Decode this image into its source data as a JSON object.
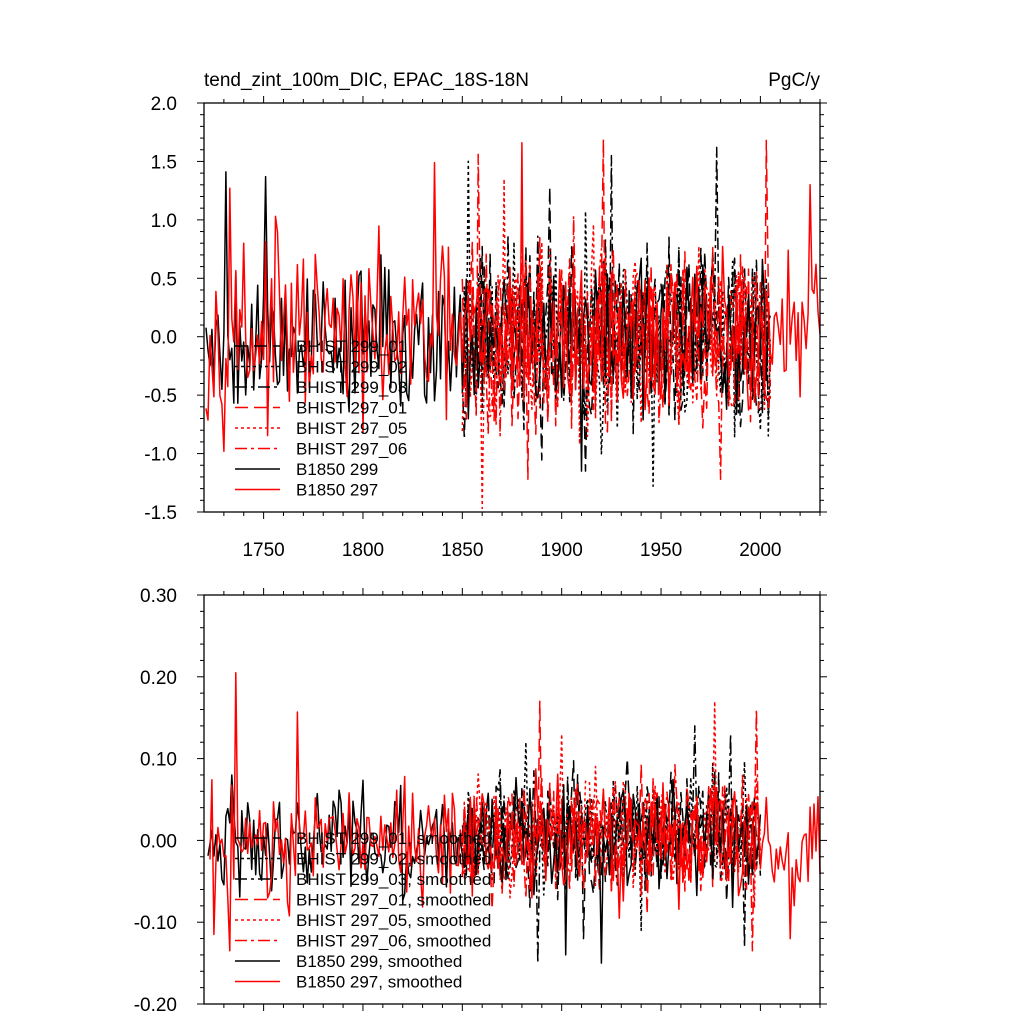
{
  "figure": {
    "title_left": "tend_zint_100m_DIC, EPAC_18S-18N",
    "title_right": "PgC/y"
  },
  "colors": {
    "black": "#000000",
    "red": "#ff0000"
  },
  "chart_data": [
    {
      "type": "line",
      "title": "tend_zint_100m_DIC, EPAC_18S-18N",
      "units": "PgC/y",
      "xlim": [
        1720,
        2030
      ],
      "ylim": [
        -1.5,
        2.0
      ],
      "x_major_ticks": [
        1750,
        1800,
        1850,
        1900,
        1950,
        2000
      ],
      "x_tick_labels": [
        "1750",
        "1800",
        "1850",
        "1900",
        "1950",
        "2000"
      ],
      "y_major_ticks": [
        -1.5,
        -1.0,
        -0.5,
        0.0,
        0.5,
        1.0,
        1.5,
        2.0
      ],
      "y_tick_labels": [
        "-1.5",
        "-1.0",
        "-0.5",
        "0.0",
        "0.5",
        "1.0",
        "1.5",
        "2.0"
      ],
      "legend_position": "lower-left",
      "series": [
        {
          "name": "BHIST 299_01",
          "color": "black",
          "dash": "longdash",
          "x_start": 1850,
          "x_end": 2005,
          "mean": 0.0,
          "amp": 0.55,
          "seed": 11,
          "extremes": [
            [
              1894,
              1.28
            ],
            [
              1912,
              -1.15
            ]
          ]
        },
        {
          "name": "BHIST 299_02",
          "color": "black",
          "dash": "dot",
          "x_start": 1850,
          "x_end": 2005,
          "mean": 0.0,
          "amp": 0.55,
          "seed": 23,
          "extremes": [
            [
              1853,
              1.5
            ],
            [
              1946,
              -1.28
            ],
            [
              2004,
              -0.85
            ]
          ]
        },
        {
          "name": "BHIST 299_03",
          "color": "black",
          "dash": "dashdot",
          "x_start": 1850,
          "x_end": 2005,
          "mean": 0.0,
          "amp": 0.55,
          "seed": 37,
          "extremes": [
            [
              1925,
              1.55
            ],
            [
              1978,
              1.62
            ]
          ]
        },
        {
          "name": "BHIST 297_01",
          "color": "red",
          "dash": "longdash",
          "x_start": 1850,
          "x_end": 2005,
          "mean": 0.0,
          "amp": 0.55,
          "seed": 41,
          "extremes": [
            [
              1921,
              1.69
            ],
            [
              2003,
              1.68
            ],
            [
              1883,
              -1.22
            ]
          ]
        },
        {
          "name": "BHIST 297_05",
          "color": "red",
          "dash": "dot",
          "x_start": 1850,
          "x_end": 2005,
          "mean": 0.0,
          "amp": 0.55,
          "seed": 53,
          "extremes": [
            [
              1860,
              -1.47
            ],
            [
              1871,
              1.35
            ]
          ]
        },
        {
          "name": "BHIST 297_06",
          "color": "red",
          "dash": "dashdot",
          "x_start": 1850,
          "x_end": 2005,
          "mean": 0.0,
          "amp": 0.55,
          "seed": 67,
          "extremes": [
            [
              1858,
              1.56
            ],
            [
              1980,
              -1.22
            ]
          ]
        },
        {
          "name": "B1850 299",
          "color": "black",
          "dash": "solid",
          "x_start": 1721,
          "x_end": 2005,
          "mean": 0.0,
          "amp": 0.45,
          "seed": 79,
          "extremes": [
            [
              1731,
              1.41
            ],
            [
              1751,
              1.37
            ],
            [
              1910,
              -1.15
            ]
          ]
        },
        {
          "name": "B1850 297",
          "color": "red",
          "dash": "solid",
          "x_start": 1721,
          "x_end": 2030,
          "mean": 0.0,
          "amp": 0.48,
          "seed": 97,
          "extremes": [
            [
              1733,
              1.27
            ],
            [
              1740,
              0.8
            ],
            [
              1756,
              1.03
            ],
            [
              1836,
              1.49
            ],
            [
              1880,
              1.66
            ],
            [
              2025,
              -1.03
            ],
            [
              2025,
              1.3
            ]
          ]
        }
      ]
    },
    {
      "type": "line",
      "title": "",
      "xlim": [
        1720,
        2030
      ],
      "ylim": [
        -0.2,
        0.3
      ],
      "x_major_ticks": [
        1750,
        1800,
        1850,
        1900,
        1950,
        2000
      ],
      "y_major_ticks": [
        -0.2,
        -0.1,
        0.0,
        0.1,
        0.2,
        0.3
      ],
      "y_tick_labels": [
        "-0.20",
        "-0.10",
        "0.00",
        "0.10",
        "0.20",
        "0.30"
      ],
      "legend_position": "lower-left",
      "series": [
        {
          "name": "BHIST 299_01, smoothed",
          "color": "black",
          "dash": "longdash",
          "x_start": 1850,
          "x_end": 2000,
          "mean": 0.01,
          "amp": 0.05,
          "seed": 111,
          "extremes": [
            [
              1933,
              0.1
            ],
            [
              1911,
              -0.12
            ]
          ]
        },
        {
          "name": "BHIST 299_02, smoothed",
          "color": "black",
          "dash": "dot",
          "x_start": 1850,
          "x_end": 2000,
          "mean": 0.01,
          "amp": 0.05,
          "seed": 123,
          "extremes": [
            [
              1882,
              0.12
            ],
            [
              1940,
              -0.11
            ]
          ]
        },
        {
          "name": "BHIST 299_03, smoothed",
          "color": "black",
          "dash": "dashdot",
          "x_start": 1850,
          "x_end": 2000,
          "mean": 0.01,
          "amp": 0.05,
          "seed": 137,
          "extremes": [
            [
              1888,
              -0.15
            ],
            [
              1985,
              0.13
            ],
            [
              1967,
              0.14
            ],
            [
              1992,
              -0.13
            ]
          ]
        },
        {
          "name": "BHIST 297_01, smoothed",
          "color": "red",
          "dash": "longdash",
          "x_start": 1850,
          "x_end": 2000,
          "mean": 0.01,
          "amp": 0.05,
          "seed": 141,
          "extremes": [
            [
              1889,
              0.17
            ],
            [
              1943,
              -0.09
            ]
          ]
        },
        {
          "name": "BHIST 297_05, smoothed",
          "color": "red",
          "dash": "dot",
          "x_start": 1850,
          "x_end": 2000,
          "mean": 0.01,
          "amp": 0.05,
          "seed": 153,
          "extremes": [
            [
              1977,
              0.17
            ],
            [
              1900,
              0.13
            ]
          ]
        },
        {
          "name": "BHIST 297_06, smoothed",
          "color": "red",
          "dash": "dashdot",
          "x_start": 1850,
          "x_end": 2000,
          "mean": 0.01,
          "amp": 0.05,
          "seed": 167,
          "extremes": [
            [
              1996,
              -0.135
            ],
            [
              1998,
              0.16
            ]
          ]
        },
        {
          "name": "B1850 299, smoothed",
          "color": "black",
          "dash": "solid",
          "x_start": 1722,
          "x_end": 2000,
          "mean": 0.0,
          "amp": 0.045,
          "seed": 179,
          "extremes": [
            [
              1734,
              0.08
            ],
            [
              1902,
              -0.14
            ],
            [
              1920,
              -0.15
            ]
          ]
        },
        {
          "name": "B1850 297, smoothed",
          "color": "red",
          "dash": "solid",
          "x_start": 1723,
          "x_end": 2030,
          "mean": 0.0,
          "amp": 0.05,
          "seed": 197,
          "extremes": [
            [
              1725,
              -0.115
            ],
            [
              1736,
              0.205
            ],
            [
              1767,
              0.157
            ],
            [
              1733,
              -0.135
            ],
            [
              2015,
              -0.12
            ]
          ]
        }
      ]
    }
  ]
}
